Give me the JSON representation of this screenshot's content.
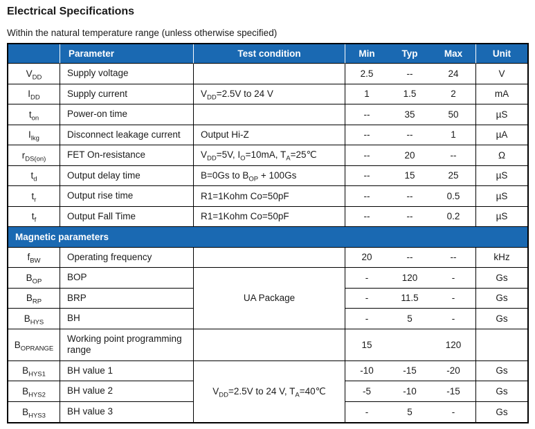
{
  "page": {
    "title": "Electrical Specifications",
    "subtitle": "Within the natural temperature range (unless otherwise specified)"
  },
  "colors": {
    "header_bg": "#1a69b2",
    "header_text": "#ffffff",
    "border": "#000000"
  },
  "table": {
    "columns": [
      "",
      "Parameter",
      "Test condition",
      "Min",
      "Typ",
      "Max",
      "Unit"
    ],
    "rows": [
      {
        "type": "data",
        "sym": "V~DD~",
        "param": "Supply voltage",
        "test": "",
        "min": "2.5",
        "typ": "--",
        "max": "24",
        "unit": "V"
      },
      {
        "type": "data",
        "sym": "I~DD~",
        "param": "Supply current",
        "test": "V~DD~=2.5V to 24 V",
        "min": "1",
        "typ": "1.5",
        "max": "2",
        "unit": "mA"
      },
      {
        "type": "data",
        "sym": "t~on~",
        "param": "Power-on time",
        "test": "",
        "min": "--",
        "typ": "35",
        "max": "50",
        "unit": "µS"
      },
      {
        "type": "data",
        "sym": "I~lkg~",
        "param": "Disconnect leakage current",
        "test": "Output Hi-Z",
        "min": "--",
        "typ": "--",
        "max": "1",
        "unit": "µA"
      },
      {
        "type": "data",
        "sym": "r~DS(on)~",
        "param": "FET On-resistance",
        "test": "V~DD~=5V, I~O~=10mA, T~A~=25℃",
        "min": "--",
        "typ": "20",
        "max": "--",
        "unit": "Ω"
      },
      {
        "type": "data",
        "sym": "t~d~",
        "param": "Output delay time",
        "test": "B=0Gs to B~OP~ + 100Gs",
        "min": "--",
        "typ": "15",
        "max": "25",
        "unit": "µS"
      },
      {
        "type": "data",
        "sym": "t~r~",
        "param": "Output rise time",
        "test": "R1=1Kohm Co=50pF",
        "min": "--",
        "typ": "--",
        "max": "0.5",
        "unit": "µS"
      },
      {
        "type": "data",
        "sym": "t~f~",
        "param": "Output Fall Time",
        "test": "R1=1Kohm Co=50pF",
        "min": "--",
        "typ": "--",
        "max": "0.2",
        "unit": "µS"
      },
      {
        "type": "section",
        "label": "Magnetic parameters"
      },
      {
        "type": "data",
        "sym": "f~BW~",
        "param": "Operating frequency",
        "test": "",
        "min": "20",
        "typ": "--",
        "max": "--",
        "unit": "kHz"
      },
      {
        "type": "data",
        "sym": "B~OP~",
        "param": "BOP",
        "test": "UA Package",
        "test_rowspan": 3,
        "test_align": "center",
        "min": "-",
        "typ": "120",
        "max": "-",
        "unit": "Gs"
      },
      {
        "type": "data",
        "sym": "B~RP~",
        "param": "BRP",
        "test": null,
        "min": "-",
        "typ": "11.5",
        "max": "-",
        "unit": "Gs"
      },
      {
        "type": "data",
        "sym": "B~HYS~",
        "param": "BH",
        "test": null,
        "min": "-",
        "typ": "5",
        "max": "-",
        "unit": "Gs"
      },
      {
        "type": "data",
        "sym": "B~OPRANGE~",
        "param": "Working point programming range",
        "test": "",
        "min": "15",
        "typ": "",
        "max": "120",
        "unit": "",
        "tall": true
      },
      {
        "type": "data",
        "sym": "B~HYS1~",
        "param": "BH value 1",
        "test": "V~DD~=2.5V to 24 V, T~A~=40℃",
        "test_rowspan": 3,
        "test_align": "center",
        "min": "-10",
        "typ": "-15",
        "max": "-20",
        "unit": "Gs"
      },
      {
        "type": "data",
        "sym": "B~HYS2~",
        "param": "BH value 2",
        "test": null,
        "min": "-5",
        "typ": "-10",
        "max": "-15",
        "unit": "Gs"
      },
      {
        "type": "data",
        "sym": "B~HYS3~",
        "param": "BH value 3",
        "test": null,
        "min": "-",
        "typ": "5",
        "max": "-",
        "unit": "Gs"
      }
    ]
  }
}
